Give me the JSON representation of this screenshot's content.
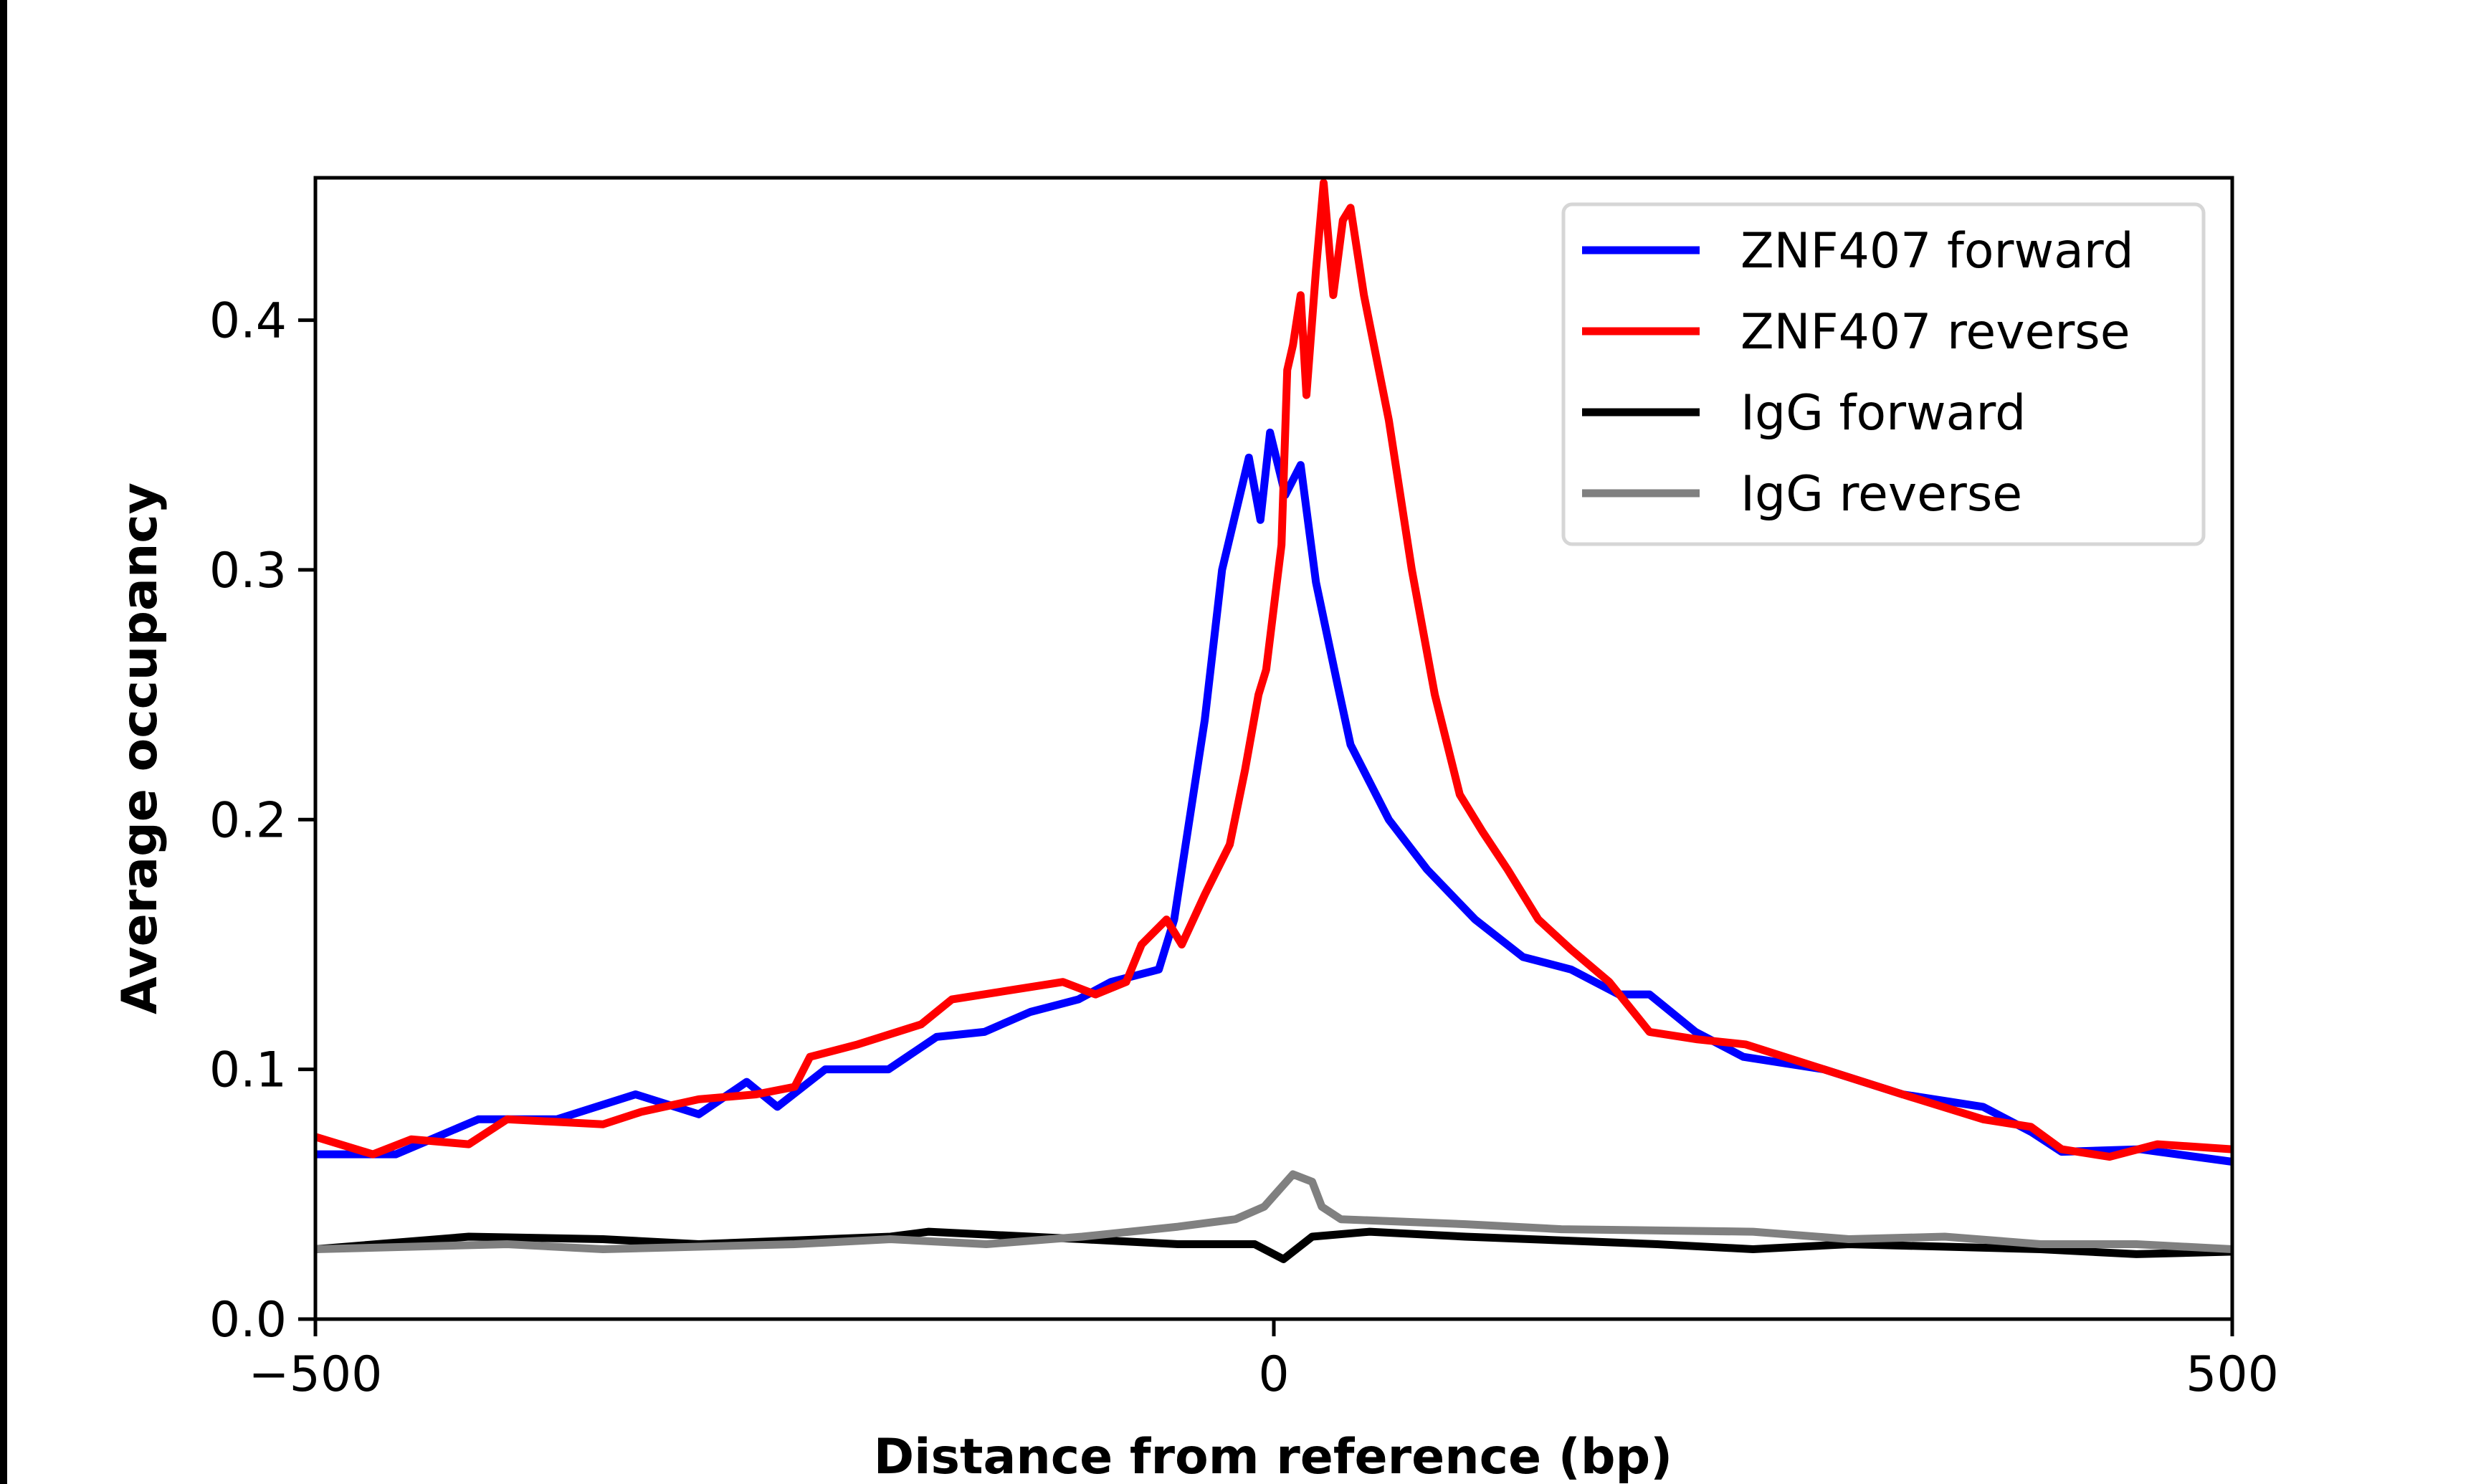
{
  "chart_data": {
    "type": "line",
    "title": "",
    "xlabel": "Distance from reference (bp)",
    "ylabel": "Average occupancy",
    "xlim": [
      -500,
      500
    ],
    "ylim": [
      0,
      0.457
    ],
    "xticks": [
      -500,
      0,
      500
    ],
    "xtick_labels": [
      "−500",
      "0",
      "500"
    ],
    "yticks": [
      0.0,
      0.1,
      0.2,
      0.3,
      0.4
    ],
    "ytick_labels": [
      "0.0",
      "0.1",
      "0.2",
      "0.3",
      "0.4"
    ],
    "grid": false,
    "legend_position": "top-right",
    "series": [
      {
        "name": "ZNF407 forward",
        "color": "#0000ff",
        "x": [
          -500,
          -458,
          -415,
          -374,
          -333,
          -300,
          -275,
          -259,
          -234,
          -201,
          -176,
          -151,
          -127,
          -102,
          -85,
          -60,
          -52,
          -44,
          -36,
          -27,
          -13,
          -7,
          -2,
          6,
          14,
          22,
          33,
          40,
          60,
          80,
          105,
          130,
          155,
          180,
          196,
          220,
          245,
          287,
          328,
          370,
          395,
          411,
          452,
          500
        ],
        "y": [
          0.066,
          0.066,
          0.08,
          0.08,
          0.09,
          0.082,
          0.095,
          0.085,
          0.1,
          0.1,
          0.113,
          0.115,
          0.123,
          0.128,
          0.135,
          0.14,
          0.16,
          0.2,
          0.24,
          0.3,
          0.345,
          0.32,
          0.355,
          0.33,
          0.342,
          0.295,
          0.255,
          0.23,
          0.2,
          0.18,
          0.16,
          0.145,
          0.14,
          0.13,
          0.13,
          0.115,
          0.105,
          0.1,
          0.09,
          0.085,
          0.075,
          0.067,
          0.068,
          0.063
        ]
      },
      {
        "name": "ZNF407 reverse",
        "color": "#ff0000",
        "x": [
          -500,
          -470,
          -450,
          -420,
          -400,
          -350,
          -330,
          -300,
          -270,
          -250,
          -242,
          -217,
          -184,
          -168,
          -135,
          -110,
          -93,
          -77,
          -69,
          -56,
          -48,
          -36,
          -23,
          -15,
          -8,
          -4,
          4,
          7,
          10,
          14,
          17,
          22,
          26,
          31,
          36,
          40,
          47,
          60,
          72,
          84,
          97,
          109,
          122,
          138,
          155,
          175,
          196,
          221,
          246,
          287,
          328,
          370,
          395,
          411,
          436,
          461,
          500
        ],
        "y": [
          0.073,
          0.066,
          0.072,
          0.07,
          0.08,
          0.078,
          0.083,
          0.088,
          0.09,
          0.093,
          0.105,
          0.11,
          0.118,
          0.128,
          0.132,
          0.135,
          0.13,
          0.135,
          0.15,
          0.16,
          0.15,
          0.17,
          0.19,
          0.22,
          0.25,
          0.26,
          0.31,
          0.38,
          0.39,
          0.41,
          0.37,
          0.42,
          0.455,
          0.41,
          0.44,
          0.445,
          0.41,
          0.36,
          0.3,
          0.25,
          0.21,
          0.195,
          0.18,
          0.16,
          0.148,
          0.135,
          0.115,
          0.112,
          0.11,
          0.1,
          0.09,
          0.08,
          0.077,
          0.068,
          0.065,
          0.07,
          0.068
        ]
      },
      {
        "name": "IgG forward",
        "color": "#000000",
        "x": [
          -500,
          -420,
          -350,
          -300,
          -200,
          -180,
          -100,
          -50,
          -10,
          5,
          20,
          50,
          100,
          200,
          250,
          300,
          400,
          450,
          500
        ],
        "y": [
          0.028,
          0.033,
          0.032,
          0.03,
          0.033,
          0.035,
          0.032,
          0.03,
          0.03,
          0.024,
          0.033,
          0.035,
          0.033,
          0.03,
          0.028,
          0.03,
          0.028,
          0.026,
          0.027
        ]
      },
      {
        "name": "IgG reverse",
        "color": "#808080",
        "x": [
          -500,
          -400,
          -350,
          -250,
          -200,
          -150,
          -100,
          -50,
          -20,
          -5,
          10,
          20,
          25,
          35,
          100,
          150,
          250,
          300,
          350,
          400,
          450,
          500
        ],
        "y": [
          0.028,
          0.03,
          0.028,
          0.03,
          0.032,
          0.03,
          0.033,
          0.037,
          0.04,
          0.045,
          0.058,
          0.055,
          0.045,
          0.04,
          0.038,
          0.036,
          0.035,
          0.032,
          0.033,
          0.03,
          0.03,
          0.028
        ]
      }
    ]
  }
}
